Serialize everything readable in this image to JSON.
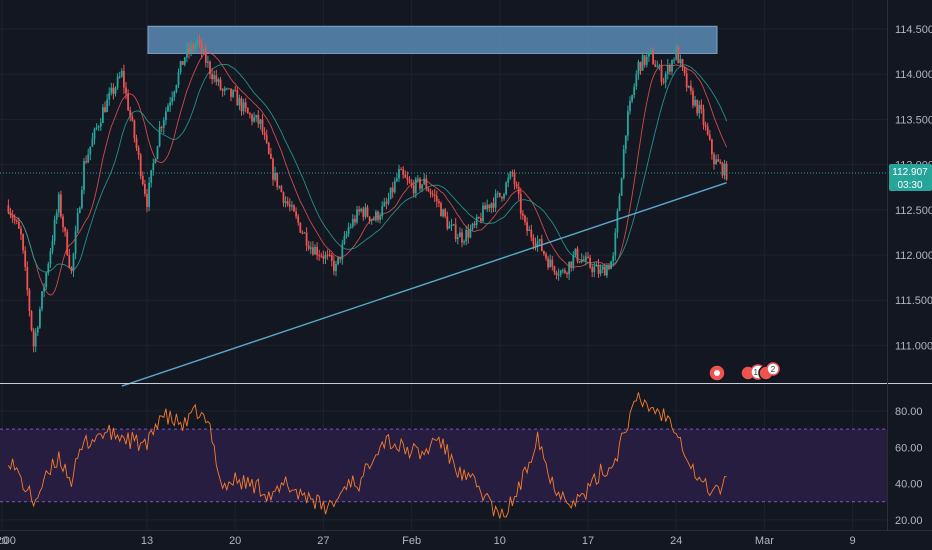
{
  "chart_data": [
    {
      "type": "candlestick",
      "panel": "price",
      "y_axis_ticks": [
        "114.500",
        "114.000",
        "113.500",
        "113.000",
        "112.500",
        "112.000",
        "111.500",
        "111.000"
      ],
      "ylim": [
        110.55,
        114.7
      ],
      "x_tick_labels": [
        "2020",
        "12:00",
        "13",
        "20",
        "27",
        "Feb",
        "10",
        "17",
        "24",
        "Mar",
        "9"
      ],
      "last_price": "112.907",
      "countdown": "03:30",
      "colors": {
        "up": "#26a69a",
        "down": "#ef5350",
        "ma_fast": "#ef5350",
        "ma_slow": "#26a69a",
        "trendline": "#5aa9c9",
        "zone": "#5b8bb5",
        "price_label_bg": "#26a69a"
      },
      "resistance_zone": {
        "y_low": 114.23,
        "y_high": 114.53
      },
      "trendline": {
        "start": [
          "Jan 11",
          110.55
        ],
        "end": [
          "Feb 28",
          112.8
        ]
      },
      "price_anchors": [
        [
          "Jan 2 00:00",
          112.55
        ],
        [
          "Jan 3 00:00",
          112.2
        ],
        [
          "Jan 4 00:00",
          111.0
        ],
        [
          "Jan 6 00:00",
          112.6
        ],
        [
          "Jan 7 00:00",
          111.8
        ],
        [
          "Jan 8 00:00",
          113.0
        ],
        [
          "Jan 9 12:00",
          113.6
        ],
        [
          "Jan 11 00:00",
          114.0
        ],
        [
          "Jan 13 00:00",
          112.6
        ],
        [
          "Jan 14 00:00",
          113.4
        ],
        [
          "Jan 16 00:00",
          114.2
        ],
        [
          "Jan 17 00:00",
          114.35
        ],
        [
          "Jan 18 00:00",
          114.05
        ],
        [
          "Jan 19 00:00",
          113.8
        ],
        [
          "Jan 20 00:00",
          113.75
        ],
        [
          "Jan 21 00:00",
          113.55
        ],
        [
          "Jan 22 00:00",
          113.45
        ],
        [
          "Jan 23 00:00",
          112.9
        ],
        [
          "Jan 24 00:00",
          112.6
        ],
        [
          "Jan 25 00:00",
          112.35
        ],
        [
          "Jan 26 00:00",
          112.1
        ],
        [
          "Jan 27 00:00",
          112.0
        ],
        [
          "Jan 28 00:00",
          111.85
        ],
        [
          "Jan 29 00:00",
          112.3
        ],
        [
          "Jan 30 00:00",
          112.5
        ],
        [
          "Jan 31 00:00",
          112.4
        ],
        [
          "Feb 1 00:00",
          112.55
        ],
        [
          "Feb 2 00:00",
          112.9
        ],
        [
          "Feb 3 00:00",
          112.75
        ],
        [
          "Feb 4 00:00",
          112.8
        ],
        [
          "Feb 5 00:00",
          112.6
        ],
        [
          "Feb 6 00:00",
          112.3
        ],
        [
          "Feb 7 00:00",
          112.2
        ],
        [
          "Feb 8 00:00",
          112.3
        ],
        [
          "Feb 9 00:00",
          112.55
        ],
        [
          "Feb 10 00:00",
          112.65
        ],
        [
          "Feb 11 00:00",
          112.9
        ],
        [
          "Feb 12 00:00",
          112.3
        ],
        [
          "Feb 13 00:00",
          112.15
        ],
        [
          "Feb 14 00:00",
          111.9
        ],
        [
          "Feb 15 00:00",
          111.8
        ],
        [
          "Feb 16 00:00",
          112.0
        ],
        [
          "Feb 17 00:00",
          111.9
        ],
        [
          "Feb 18 00:00",
          111.8
        ],
        [
          "Feb 19 00:00",
          111.95
        ],
        [
          "Feb 20 00:00",
          113.4
        ],
        [
          "Feb 21 00:00",
          114.1
        ],
        [
          "Feb 22 00:00",
          114.2
        ],
        [
          "Feb 23 00:00",
          113.95
        ],
        [
          "Feb 24 00:00",
          114.25
        ],
        [
          "Feb 25 00:00",
          113.8
        ],
        [
          "Feb 26 00:00",
          113.55
        ],
        [
          "Feb 27 00:00",
          113.05
        ],
        [
          "Feb 28 00:00",
          112.91
        ]
      ],
      "event_badges": [
        "",
        "16",
        "2"
      ]
    },
    {
      "type": "line",
      "panel": "oscillator",
      "y_axis_ticks": [
        "80.00",
        "60.00",
        "40.00",
        "20.00"
      ],
      "ylim": [
        15,
        95
      ],
      "band": [
        30,
        70
      ],
      "colors": {
        "line": "#f57c2b",
        "band_fill": "#2a1f47",
        "band_line": "#7e57c2"
      },
      "anchors": [
        [
          "Jan 2 00:00",
          55
        ],
        [
          "Jan 3 00:00",
          42
        ],
        [
          "Jan 4 00:00",
          30
        ],
        [
          "Jan 6 00:00",
          55
        ],
        [
          "Jan 7 00:00",
          42
        ],
        [
          "Jan 8 00:00",
          62
        ],
        [
          "Jan 9 12:00",
          68
        ],
        [
          "Jan 11 00:00",
          66
        ],
        [
          "Jan 13 00:00",
          60
        ],
        [
          "Jan 14 00:00",
          78
        ],
        [
          "Jan 16 00:00",
          72
        ],
        [
          "Jan 17 00:00",
          80
        ],
        [
          "Jan 18 00:00",
          70
        ],
        [
          "Jan 19 00:00",
          38
        ],
        [
          "Jan 20 00:00",
          42
        ],
        [
          "Jan 21 00:00",
          40
        ],
        [
          "Jan 22 00:00",
          38
        ],
        [
          "Jan 23 00:00",
          32
        ],
        [
          "Jan 24 00:00",
          40
        ],
        [
          "Jan 25 00:00",
          35
        ],
        [
          "Jan 26 00:00",
          33
        ],
        [
          "Jan 27 00:00",
          26
        ],
        [
          "Jan 28 00:00",
          30
        ],
        [
          "Jan 29 00:00",
          42
        ],
        [
          "Jan 30 00:00",
          40
        ],
        [
          "Jan 31 00:00",
          58
        ],
        [
          "Feb 1 00:00",
          65
        ],
        [
          "Feb 2 00:00",
          60
        ],
        [
          "Feb 3 00:00",
          58
        ],
        [
          "Feb 4 00:00",
          56
        ],
        [
          "Feb 5 00:00",
          66
        ],
        [
          "Feb 6 00:00",
          55
        ],
        [
          "Feb 7 00:00",
          44
        ],
        [
          "Feb 8 00:00",
          40
        ],
        [
          "Feb 9 00:00",
          32
        ],
        [
          "Feb 10 00:00",
          20
        ],
        [
          "Feb 11 00:00",
          30
        ],
        [
          "Feb 12 00:00",
          45
        ],
        [
          "Feb 13 00:00",
          68
        ],
        [
          "Feb 14 00:00",
          42
        ],
        [
          "Feb 15 00:00",
          34
        ],
        [
          "Feb 16 00:00",
          30
        ],
        [
          "Feb 17 00:00",
          36
        ],
        [
          "Feb 18 00:00",
          46
        ],
        [
          "Feb 19 00:00",
          50
        ],
        [
          "Feb 20 00:00",
          72
        ],
        [
          "Feb 21 00:00",
          86
        ],
        [
          "Feb 22 00:00",
          82
        ],
        [
          "Feb 23 00:00",
          78
        ],
        [
          "Feb 24 00:00",
          72
        ],
        [
          "Feb 25 00:00",
          52
        ],
        [
          "Feb 26 00:00",
          40
        ],
        [
          "Feb 27 00:00",
          36
        ],
        [
          "Feb 28 00:00",
          40
        ]
      ]
    }
  ]
}
